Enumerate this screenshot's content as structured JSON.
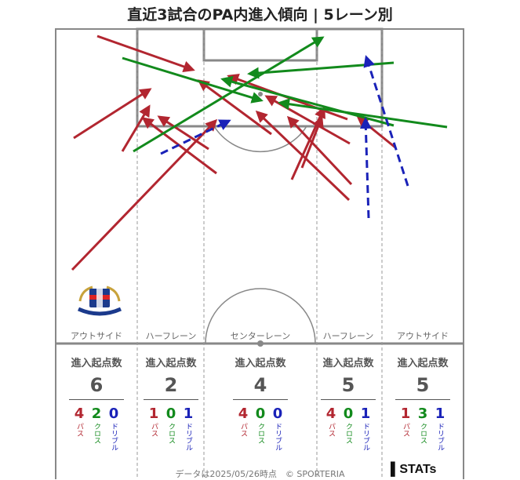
{
  "title": "直近3試合のPA内進入傾向 | 5レーン別",
  "lanes": [
    "アウトサイド",
    "ハーフレーン",
    "センターレーン",
    "ハーフレーン",
    "アウトサイド"
  ],
  "stats": {
    "header": "進入起点数",
    "labels": {
      "pass": "パス",
      "cross": "クロス",
      "dribble": "ドリブル"
    },
    "columns": [
      {
        "total": "6",
        "pass": "4",
        "cross": "2",
        "dribble": "0"
      },
      {
        "total": "2",
        "pass": "1",
        "cross": "0",
        "dribble": "1"
      },
      {
        "total": "4",
        "pass": "4",
        "cross": "0",
        "dribble": "0"
      },
      {
        "total": "5",
        "pass": "4",
        "cross": "0",
        "dribble": "1"
      },
      {
        "total": "5",
        "pass": "1",
        "cross": "3",
        "dribble": "1"
      }
    ]
  },
  "footer": "データは2025/05/26時点　© SPORTERIA",
  "brand": "STATs",
  "colors": {
    "pass": "#b22630",
    "cross": "#128a1c",
    "dribble": "#1a22b8"
  }
}
